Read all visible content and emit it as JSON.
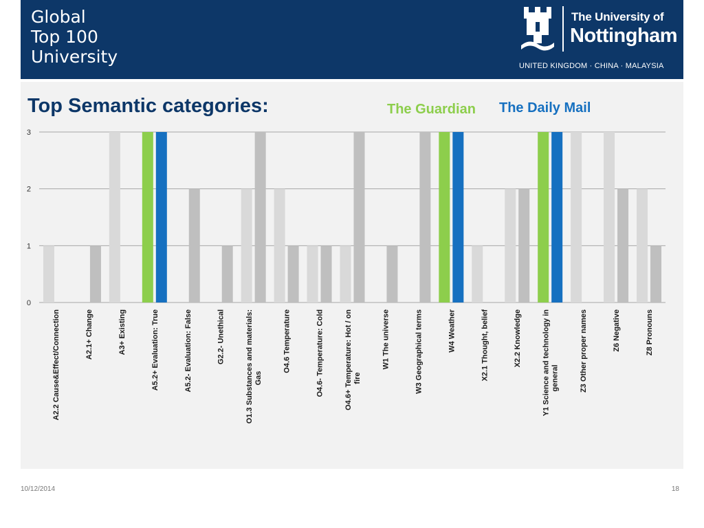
{
  "header": {
    "slogan": [
      "Global",
      "Top 100",
      "University"
    ],
    "logo_line1": "The University of",
    "logo_line2": "Nottingham",
    "logo_sub": "UNITED KINGDOM · CHINA · MALAYSIA",
    "logo_icon": "university-crest-icon"
  },
  "slide": {
    "title": "Top Semantic categories:",
    "date": "10/12/2014",
    "page_number": "18"
  },
  "colors": {
    "header_bg": "#0d3768",
    "guardian": "#8dce4c",
    "daily_mail": "#1670c0",
    "other_light": "#d9d9d9",
    "other_dark": "#bfbfbf"
  },
  "chart_data": {
    "type": "bar",
    "title": "Top Semantic categories:",
    "ylim": [
      0,
      3
    ],
    "yticks": [
      0,
      1,
      2,
      3
    ],
    "grid": true,
    "legend_position": "top",
    "categories": [
      "A2.2 Cause&Effect/Connection",
      "A2.1+ Change",
      "A3+ Existing",
      "A5.2+ Evaluation: True",
      "A5.2- Evaluation: False",
      "G2.2- Unethical",
      "O1.3 Substances and materials: Gas",
      "O4.6 Temperature",
      "O4.6- Temperature: Cold",
      "O4.6+ Temperature: Hot / on fire",
      "W1 The universe",
      "W3 Geographical terms",
      "W4 Weather",
      "X2.1 Thought, belief",
      "X2.2 Knowledge",
      "Y1 Science and technology in general",
      "Z3 Other proper names",
      "Z6 Negative",
      "Z8 Pronouns"
    ],
    "highlight_categories": [
      3,
      12,
      15
    ],
    "series": [
      {
        "name": "The Guardian",
        "values": [
          1,
          0,
          3,
          3,
          0,
          0,
          2,
          2,
          1,
          1,
          0,
          0,
          3,
          1,
          2,
          3,
          3,
          3,
          2
        ]
      },
      {
        "name": "The Daily Mail",
        "values": [
          0,
          1,
          0,
          3,
          2,
          1,
          3,
          1,
          1,
          3,
          1,
          3,
          3,
          0,
          2,
          3,
          0,
          2,
          1
        ]
      }
    ]
  }
}
